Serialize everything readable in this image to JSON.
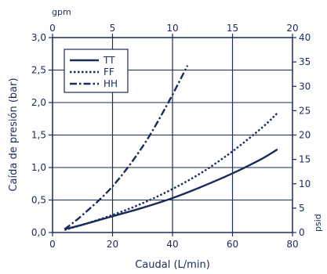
{
  "chart_data": {
    "type": "line",
    "xlabel": "Caudal (L/min)",
    "ylabel": "Caída de presión (bar)",
    "top_axis_label": "gpm",
    "right_axis_label": "psid",
    "xlim": [
      0,
      80
    ],
    "ylim": [
      0,
      3.0
    ],
    "x_ticks": [
      0,
      20,
      40,
      60,
      80
    ],
    "x_tick_labels": [
      "0",
      "20",
      "40",
      "60",
      "80"
    ],
    "y_ticks": [
      0,
      0.5,
      1.0,
      1.5,
      2.0,
      2.5,
      3.0
    ],
    "y_tick_labels": [
      "0,0",
      "0,5",
      "1,0",
      "1,5",
      "2,0",
      "2,5",
      "3,0"
    ],
    "top_ticks": [
      0,
      5,
      10,
      15,
      20
    ],
    "top_tick_labels": [
      "0",
      "5",
      "10",
      "15",
      "20"
    ],
    "right_ticks": [
      0,
      5,
      10,
      15,
      20,
      25,
      30,
      35,
      40
    ],
    "right_tick_labels": [
      "0",
      "5",
      "10",
      "15",
      "20",
      "25",
      "30",
      "35",
      "40"
    ],
    "grid": true,
    "legend_position": "top-left",
    "colors": {
      "line": "#1a2a5a",
      "grid": "#1a2a5a",
      "text": "#1a2a5a"
    },
    "series": [
      {
        "name": "TT",
        "dash": "solid",
        "x": [
          4,
          10,
          20,
          30,
          40,
          50,
          60,
          70,
          75
        ],
        "y": [
          0.05,
          0.12,
          0.25,
          0.38,
          0.53,
          0.71,
          0.91,
          1.14,
          1.28
        ]
      },
      {
        "name": "FF",
        "dash": "dotted",
        "x": [
          4,
          10,
          20,
          30,
          40,
          50,
          60,
          70,
          75
        ],
        "y": [
          0.04,
          0.12,
          0.27,
          0.45,
          0.67,
          0.93,
          1.25,
          1.62,
          1.84
        ]
      },
      {
        "name": "HH",
        "dash": "dashdot",
        "x": [
          4,
          10,
          20,
          30,
          38,
          45
        ],
        "y": [
          0.05,
          0.27,
          0.71,
          1.32,
          1.95,
          2.57
        ]
      }
    ]
  }
}
